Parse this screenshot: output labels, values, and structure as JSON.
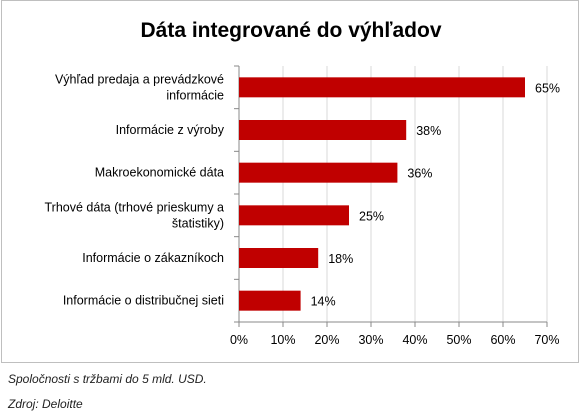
{
  "chart_data": {
    "type": "bar",
    "orientation": "horizontal",
    "title": "Dáta integrované do výhľadov",
    "categories": [
      [
        "Výhľad predaja a prevádzkové",
        "informácie"
      ],
      [
        "Informácie z výroby"
      ],
      [
        "Makroekonomické dáta"
      ],
      [
        "Trhové dáta (trhové prieskumy a",
        "štatistiky)"
      ],
      [
        "Informácie o zákazníkoch"
      ],
      [
        "Informácie o distribučnej sieti"
      ]
    ],
    "values": [
      65,
      38,
      36,
      25,
      18,
      14
    ],
    "data_labels": [
      "65%",
      "38%",
      "36%",
      "25%",
      "18%",
      "14%"
    ],
    "xlim": [
      0,
      70
    ],
    "x_ticks": [
      0,
      10,
      20,
      30,
      40,
      50,
      60,
      70
    ],
    "x_tick_labels": [
      "0%",
      "10%",
      "20%",
      "30%",
      "40%",
      "50%",
      "60%",
      "70%"
    ],
    "gridlines": true,
    "legend": "none",
    "bar_color": "#c00000",
    "grid_color": "#d9d9d9"
  },
  "notes": {
    "sample": "Spoločnosti s tržbami do 5 mld. USD.",
    "source": "Zdroj: Deloitte"
  }
}
